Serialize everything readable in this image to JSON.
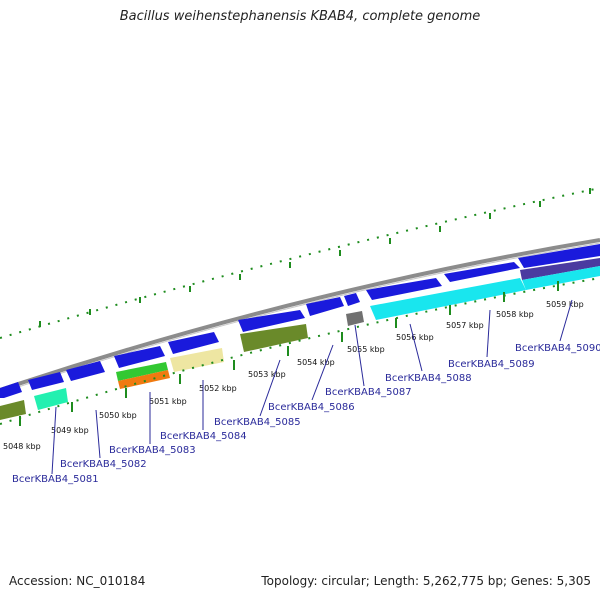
{
  "title": "Bacillus weihenstephanensis KBAB4, complete genome",
  "footer": {
    "accession": "Accession: NC_010184",
    "topology": "Topology: circular; Length: 5,262,775 bp; Genes: 5,305"
  },
  "kbp_ticks": [
    "5048 kbp",
    "5049 kbp",
    "5050 kbp",
    "5051 kbp",
    "5052 kbp",
    "5053 kbp",
    "5054 kbp",
    "5055 kbp",
    "5056 kbp",
    "5057 kbp",
    "5058 kbp",
    "5059 kbp"
  ],
  "gene_labels": [
    "BcerKBAB4_5081",
    "BcerKBAB4_5082",
    "BcerKBAB4_5083",
    "BcerKBAB4_5084",
    "BcerKBAB4_5085",
    "BcerKBAB4_5086",
    "BcerKBAB4_5087",
    "BcerKBAB4_5088",
    "BcerKBAB4_5089",
    "BcerKBAB4_5090"
  ],
  "colors": {
    "forward_gene": "#1a1adc",
    "cyan_gene": "#19e6ee",
    "teal_gene": "#22f0b0",
    "olive_gene": "#6a8a2a",
    "green_gene": "#32c832",
    "orange_gene": "#f07a10",
    "khaki_gene": "#eee6a2",
    "gray_gene": "#707070",
    "slate_gene": "#4a3aa0",
    "backbone": "#8c8c8c",
    "tick_green": "#1e8c1e",
    "label_blue": "#2a2a9a"
  }
}
